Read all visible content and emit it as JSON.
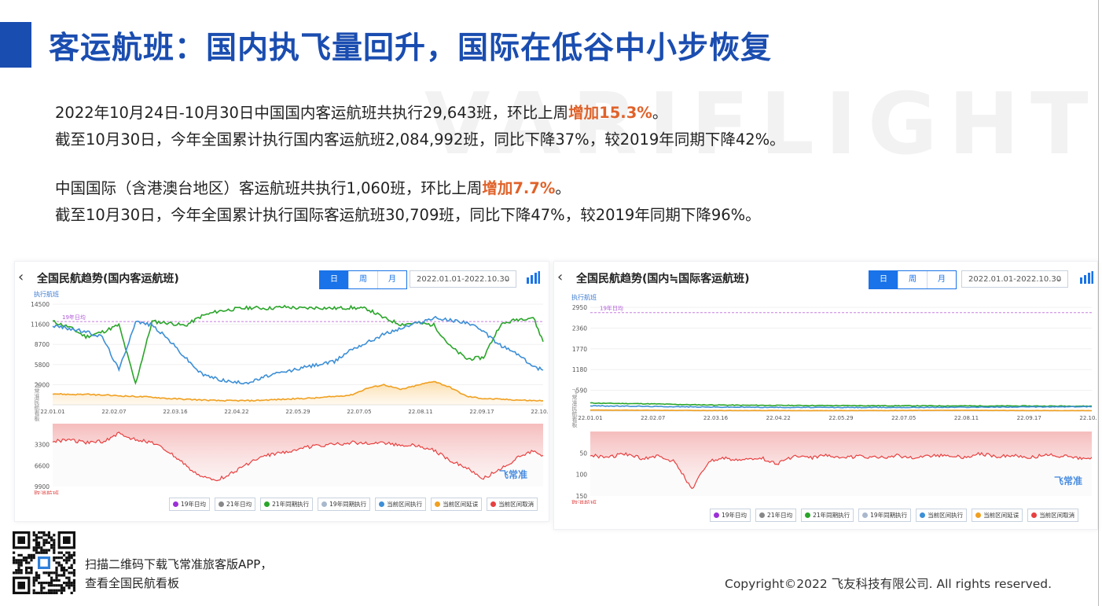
{
  "page": {
    "title": "客运航班：国内执飞量回升，国际在低谷中小步恢复",
    "watermark": "VARIFLIGHT",
    "summary": [
      {
        "pre": "2022年10月24日-10月30日中国国内客运航班共执行29,643班，环比上周",
        "hl": "增加15.3%",
        "post": "。"
      },
      {
        "pre": "截至10月30日，今年全国累计执行国内客运航班2,084,992班，同比下降37%，较2019年同期下降42%。",
        "hl": "",
        "post": ""
      },
      {
        "pre": "中国国际（含港澳台地区）客运航班共执行1,060班，环比上周",
        "hl": "增加7.7%",
        "post": "。"
      },
      {
        "pre": "截至10月30日，今年全国累计执行国际客运航班30,709班，同比下降47%，较2019年同期下降96%。",
        "hl": "",
        "post": ""
      }
    ],
    "colors": {
      "brand": "#1a4db0",
      "highlight": "#e0622a"
    },
    "footer": {
      "qr_line1": "扫描二维码下载飞常准旅客版APP，",
      "qr_line2": "查看全国民航看板",
      "copyright": "Copyright©2022 飞友科技有限公司. All rights reserved."
    }
  },
  "panels": [
    {
      "title": "全国民航趋势(国内客运航班)",
      "back_icon": "chevron-left-icon",
      "tabs": [
        {
          "label": "日",
          "active": true
        },
        {
          "label": "周",
          "active": false
        },
        {
          "label": "月",
          "active": false
        }
      ],
      "date_range": "2022.01.01-2022.10.30",
      "logo": "飞常准"
    },
    {
      "title": "全国民航趋势(国内≒国际客运航班)",
      "back_icon": "chevron-left-icon",
      "tabs": [
        {
          "label": "日",
          "active": true
        },
        {
          "label": "周",
          "active": false
        },
        {
          "label": "月",
          "active": false
        }
      ],
      "date_range": "2022.01.01-2022.10.30",
      "logo": "飞常准"
    }
  ],
  "chart_data": [
    {
      "type": "line",
      "title": "全国民航趋势(国内客运航班)",
      "upper_ylabel": "执行航班",
      "lower_ylabel": "取消航班",
      "side_label": "飞常准民航看板",
      "reference_label": "19年日均",
      "x_ticks": [
        "22.01.01",
        "22.02.07",
        "22.03.16",
        "22.04.22",
        "22.05.29",
        "22.07.05",
        "22.08.11",
        "22.09.17",
        "22.10.24"
      ],
      "upper_yticks": [
        "14500",
        "11600",
        "8700",
        "5800",
        "2900"
      ],
      "upper_ylim": [
        0,
        14500
      ],
      "lower_yticks": [
        "3300",
        "6600",
        "9900"
      ],
      "lower_ylim": [
        0,
        9900
      ],
      "reference_value": 12000,
      "legend": [
        "19年日均",
        "21年日均",
        "21年同期执行",
        "19年同期执行",
        "当前区间执行",
        "当前区间延误",
        "当前区间取消"
      ],
      "legend_colors": [
        "#9b30d9",
        "#888888",
        "#2aa52a",
        "#a9b8cc",
        "#3d8fd6",
        "#f0a020",
        "#e84040"
      ],
      "x_index": [
        0,
        10,
        20,
        30,
        40,
        50,
        60,
        70,
        80,
        90,
        100,
        110,
        120,
        130,
        140,
        150,
        160,
        170,
        180,
        190,
        200,
        210,
        220,
        230,
        240,
        250,
        260,
        270,
        280,
        290,
        296
      ],
      "series": [
        {
          "name": "21年同期执行",
          "color": "#2aa52a",
          "values": [
            12000,
            11200,
            9800,
            10500,
            11500,
            3000,
            12000,
            11800,
            11400,
            12800,
            13500,
            13800,
            14000,
            13900,
            14100,
            13900,
            14000,
            13900,
            14000,
            13800,
            12500,
            11600,
            11800,
            11500,
            8400,
            6600,
            6800,
            11500,
            12300,
            12600,
            9100
          ]
        },
        {
          "name": "当前区间执行",
          "color": "#3d8fd6",
          "values": [
            11400,
            11000,
            10500,
            9800,
            5000,
            12000,
            11500,
            9400,
            6800,
            4400,
            3700,
            3200,
            3300,
            4200,
            4700,
            5300,
            5800,
            6200,
            8000,
            9000,
            10200,
            11000,
            11800,
            12500,
            12200,
            11900,
            10500,
            8600,
            7400,
            5500,
            5000
          ]
        },
        {
          "name": "当前区间延误",
          "color": "#f0a020",
          "values": [
            1600,
            1500,
            1500,
            1400,
            1300,
            1200,
            1100,
            900,
            800,
            700,
            600,
            600,
            600,
            700,
            800,
            900,
            1000,
            1200,
            1400,
            2400,
            2900,
            2200,
            2800,
            3400,
            2500,
            1200,
            900,
            800,
            700,
            600,
            600
          ]
        },
        {
          "name": "当前区间取消",
          "color": "#e84040",
          "values": [
            2800,
            2500,
            3000,
            2800,
            1600,
            2500,
            3000,
            4500,
            6500,
            8500,
            8800,
            7500,
            6000,
            5000,
            4500,
            3800,
            3500,
            3300,
            3000,
            3000,
            3100,
            3400,
            3400,
            4200,
            5800,
            7000,
            8600,
            7200,
            5500,
            4200,
            5000
          ]
        }
      ]
    },
    {
      "type": "line",
      "title": "全国民航趋势(国内≒国际客运航班)",
      "upper_ylabel": "执行航班",
      "lower_ylabel": "取消航班",
      "side_label": "飞常准民航看板",
      "reference_label": "19年日均",
      "x_ticks": [
        "22.01.01",
        "22.02.07",
        "22.03.16",
        "22.04.22",
        "22.05.29",
        "22.07.05",
        "22.08.11",
        "22.09.17",
        "22.10.24"
      ],
      "upper_yticks": [
        "2950",
        "2360",
        "1770",
        "1180",
        "590"
      ],
      "upper_ylim": [
        0,
        2950
      ],
      "lower_yticks": [
        "50",
        "100",
        "150"
      ],
      "lower_ylim": [
        0,
        150
      ],
      "reference_value": 2800,
      "legend": [
        "19年日均",
        "21年日均",
        "21年同期执行",
        "19年同期执行",
        "当前区间执行",
        "当前区间延误",
        "当前区间取消"
      ],
      "legend_colors": [
        "#9b30d9",
        "#888888",
        "#2aa52a",
        "#a9b8cc",
        "#3d8fd6",
        "#f0a020",
        "#e84040"
      ],
      "x_index": [
        0,
        10,
        20,
        30,
        40,
        50,
        60,
        70,
        80,
        90,
        100,
        110,
        120,
        130,
        140,
        150,
        160,
        170,
        180,
        190,
        200,
        210,
        220,
        230,
        240,
        250,
        260,
        270,
        280,
        290,
        296
      ],
      "series": [
        {
          "name": "21年同期执行",
          "color": "#2aa52a",
          "values": [
            230,
            220,
            215,
            210,
            200,
            190,
            180,
            175,
            170,
            165,
            165,
            160,
            160,
            158,
            156,
            155,
            155,
            153,
            152,
            150,
            150,
            148,
            148,
            146,
            145,
            145,
            144,
            143,
            142,
            141,
            140
          ]
        },
        {
          "name": "当前区间执行",
          "color": "#3d8fd6",
          "values": [
            150,
            145,
            140,
            135,
            130,
            125,
            120,
            115,
            112,
            110,
            108,
            106,
            104,
            104,
            103,
            102,
            102,
            103,
            104,
            105,
            106,
            108,
            110,
            112,
            114,
            116,
            118,
            120,
            122,
            124,
            126
          ]
        },
        {
          "name": "当前区间延误",
          "color": "#f0a020",
          "values": [
            30,
            28,
            25,
            24,
            22,
            20,
            18,
            16,
            15,
            14,
            14,
            14,
            13,
            13,
            13,
            14,
            14,
            15,
            16,
            18,
            20,
            20,
            20,
            20,
            18,
            16,
            15,
            14,
            14,
            14,
            14
          ]
        },
        {
          "name": "当前区间取消",
          "color": "#e84040",
          "values": [
            55,
            60,
            52,
            62,
            58,
            70,
            135,
            70,
            62,
            68,
            60,
            75,
            58,
            62,
            55,
            60,
            58,
            62,
            56,
            60,
            58,
            55,
            60,
            52,
            58,
            56,
            60,
            54,
            58,
            62,
            60
          ]
        }
      ]
    }
  ]
}
